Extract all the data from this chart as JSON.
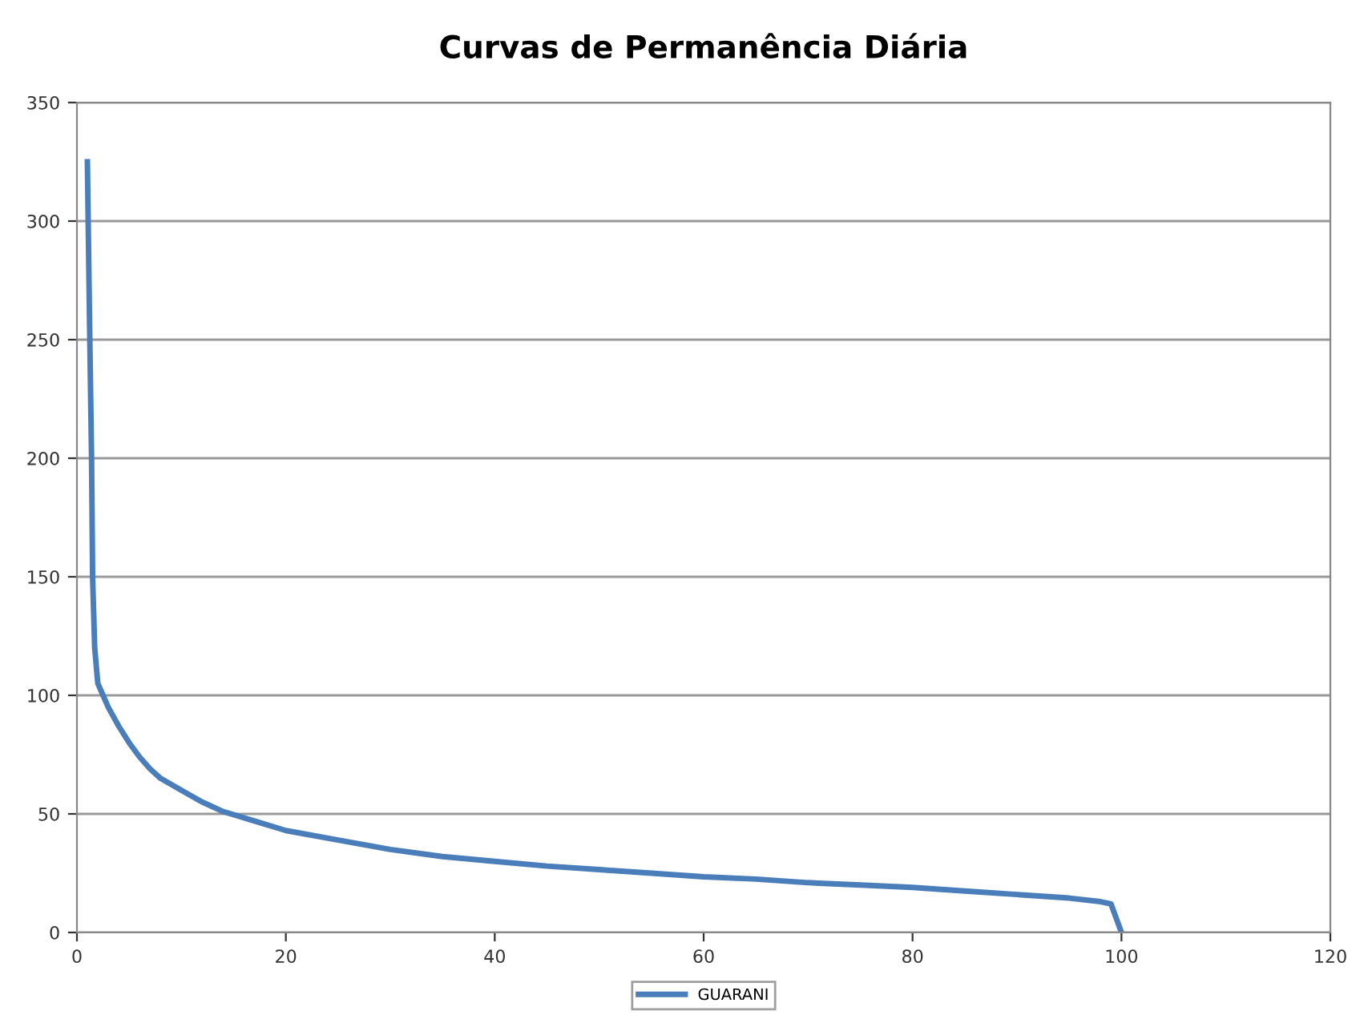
{
  "chart_data": {
    "type": "line",
    "title": "Curvas de Permanência Diária",
    "x": [
      1,
      1.2,
      1.4,
      1.5,
      1.7,
      2,
      2.5,
      3,
      4,
      5,
      6,
      7,
      8,
      10,
      12,
      14,
      17,
      20,
      25,
      30,
      35,
      40,
      45,
      50,
      55,
      60,
      65,
      70,
      75,
      80,
      85,
      90,
      95,
      98,
      99,
      100
    ],
    "series": [
      {
        "name": "GUARANI",
        "color": "#4a7ebb",
        "values": [
          325,
          260,
          200,
          150,
          120,
          105,
          100,
          95,
          87,
          80,
          74,
          69,
          65,
          60,
          55,
          51,
          47,
          43,
          39,
          35,
          32,
          30,
          28,
          26.5,
          25,
          23.5,
          22.5,
          21,
          20,
          19,
          17.5,
          16,
          14.5,
          13,
          12,
          0
        ]
      }
    ],
    "xlim": [
      0,
      120
    ],
    "xticks": [
      0,
      20,
      40,
      60,
      80,
      100,
      120
    ],
    "ylim": [
      0,
      350
    ],
    "yticks": [
      0,
      50,
      100,
      150,
      200,
      250,
      300,
      350
    ],
    "grid": "y",
    "legend": "bottom",
    "marker": "none",
    "line_style": "solid"
  }
}
